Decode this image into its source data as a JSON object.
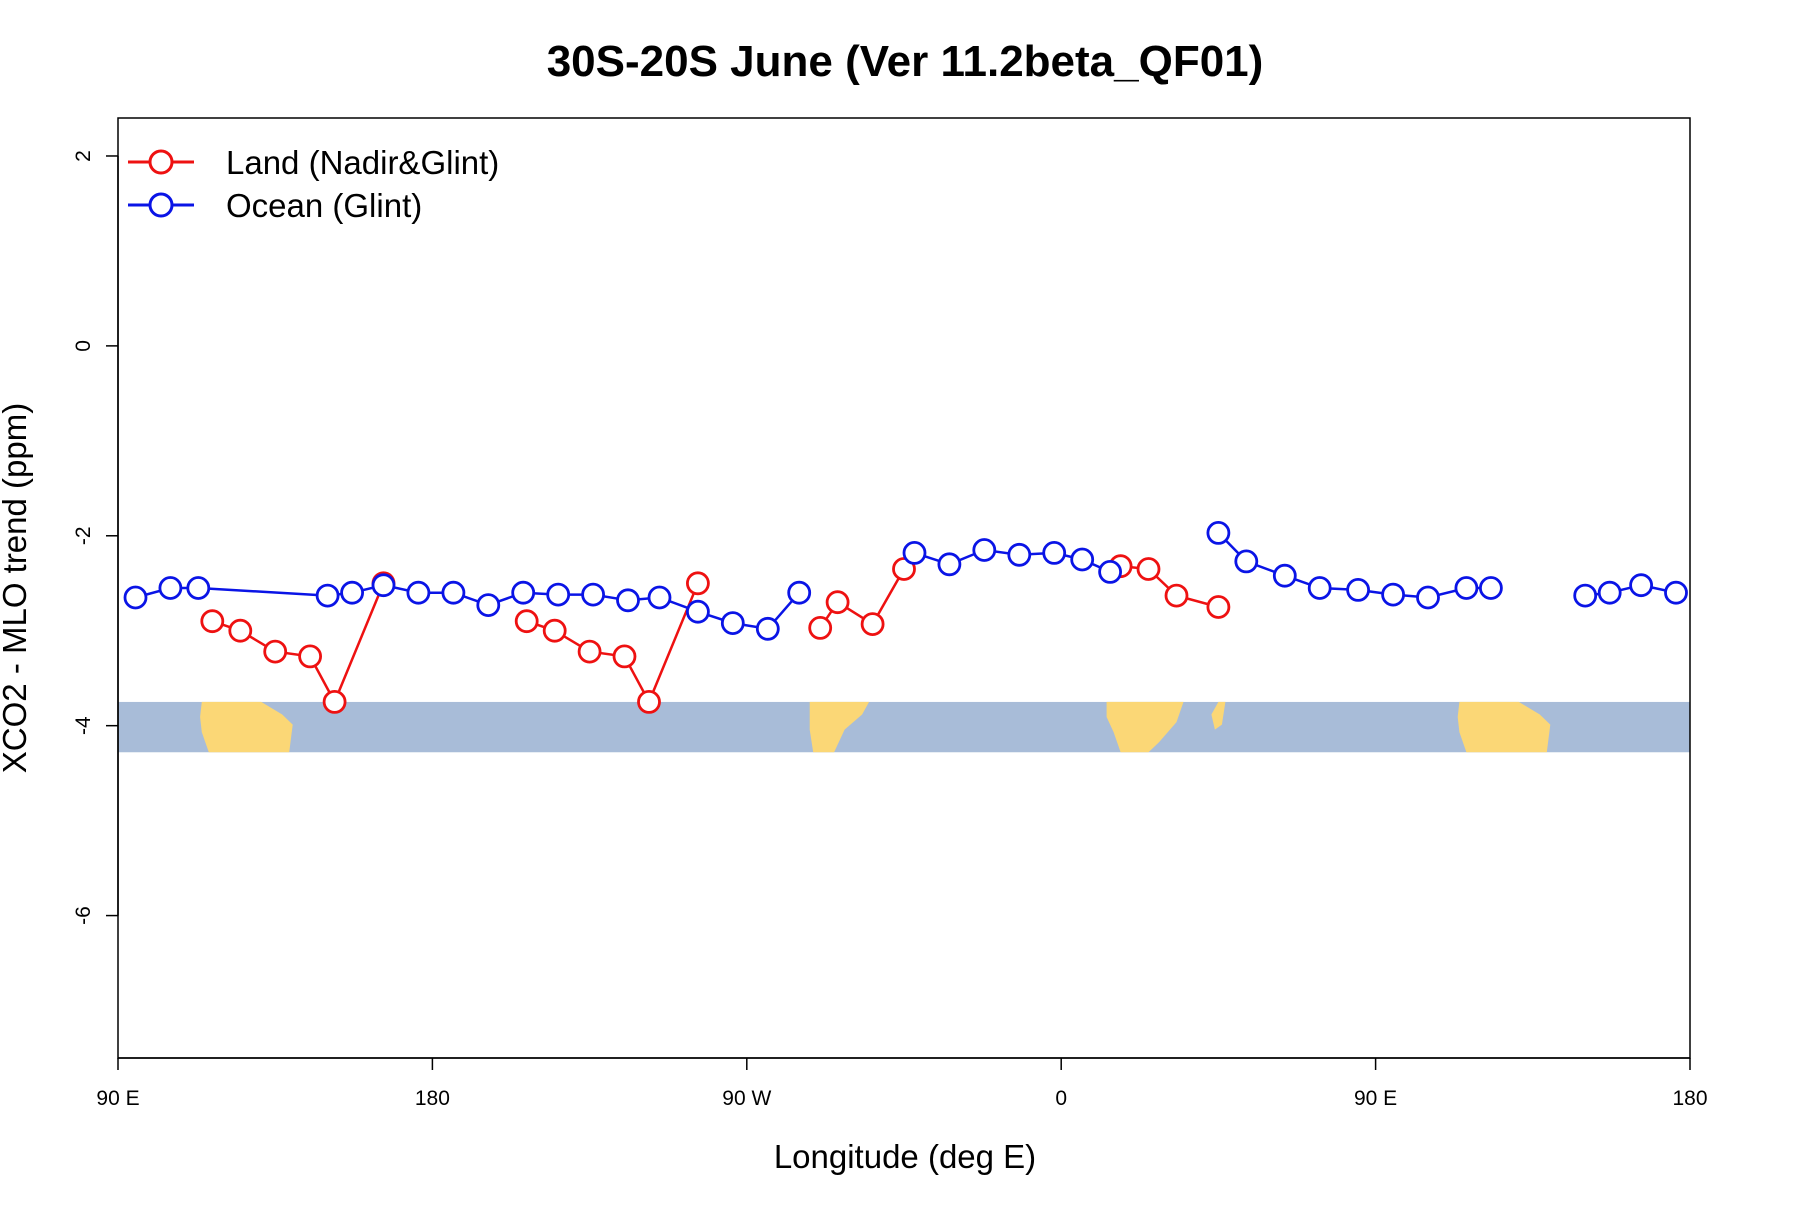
{
  "chart_data": {
    "type": "line",
    "title": "30S-20S June (Ver 11.2beta_QF01)",
    "xlabel": "Longitude (deg E)",
    "ylabel": "XCO2 - MLO trend (ppm)",
    "xlim": [
      90,
      540
    ],
    "ylim": [
      -7.5,
      2.4
    ],
    "xticks": [
      {
        "value": 90,
        "label": "90 E"
      },
      {
        "value": 180,
        "label": "180"
      },
      {
        "value": 270,
        "label": "90 W"
      },
      {
        "value": 360,
        "label": "0"
      },
      {
        "value": 450,
        "label": "90 E"
      },
      {
        "value": 540,
        "label": "180"
      }
    ],
    "yticks": [
      {
        "value": 2,
        "label": "2"
      },
      {
        "value": 0,
        "label": "0"
      },
      {
        "value": -2,
        "label": "-2"
      },
      {
        "value": -4,
        "label": "-4"
      },
      {
        "value": -6,
        "label": "-6"
      }
    ],
    "legend_position": "top-left",
    "series": [
      {
        "name": "Land (Nadir&Glint)",
        "color": "#ee1111",
        "segments": [
          [
            [
              117,
              -2.9
            ],
            [
              125,
              -3.0
            ],
            [
              135,
              -3.22
            ],
            [
              145,
              -3.27
            ],
            [
              152,
              -3.75
            ],
            [
              166,
              -2.5
            ]
          ],
          [
            [
              291,
              -2.97
            ],
            [
              296,
              -2.7
            ],
            [
              306,
              -2.93
            ],
            [
              315,
              -2.35
            ]
          ],
          [
            [
              377,
              -2.32
            ],
            [
              385,
              -2.35
            ],
            [
              393,
              -2.63
            ],
            [
              405,
              -2.75
            ]
          ],
          [
            [
              207,
              -2.9
            ],
            [
              215,
              -3.0
            ],
            [
              225,
              -3.22
            ],
            [
              235,
              -3.27
            ],
            [
              242,
              -3.75
            ],
            [
              256,
              -2.5
            ]
          ]
        ]
      },
      {
        "name": "Ocean (Glint)",
        "color": "#0a14e6",
        "segments": [
          [
            [
              95,
              -2.65
            ],
            [
              105,
              -2.55
            ],
            [
              113,
              -2.55
            ],
            [
              150,
              -2.63
            ],
            [
              157,
              -2.6
            ],
            [
              166,
              -2.52
            ],
            [
              176,
              -2.6
            ],
            [
              186,
              -2.6
            ],
            [
              196,
              -2.73
            ],
            [
              206,
              -2.6
            ],
            [
              216,
              -2.62
            ],
            [
              226,
              -2.62
            ],
            [
              236,
              -2.68
            ],
            [
              245,
              -2.65
            ],
            [
              256,
              -2.8
            ],
            [
              266,
              -2.92
            ],
            [
              276,
              -2.98
            ],
            [
              285,
              -2.6
            ]
          ],
          [
            [
              318,
              -2.18
            ],
            [
              328,
              -2.3
            ],
            [
              338,
              -2.15
            ],
            [
              348,
              -2.2
            ],
            [
              358,
              -2.18
            ],
            [
              366,
              -2.25
            ],
            [
              374,
              -2.38
            ]
          ],
          [
            [
              405,
              -1.97
            ],
            [
              413,
              -2.27
            ],
            [
              424,
              -2.42
            ],
            [
              434,
              -2.55
            ],
            [
              445,
              -2.57
            ],
            [
              455,
              -2.62
            ],
            [
              465,
              -2.65
            ],
            [
              476,
              -2.55
            ],
            [
              483,
              -2.55
            ]
          ],
          [
            [
              510,
              -2.63
            ],
            [
              517,
              -2.6
            ],
            [
              526,
              -2.52
            ],
            [
              536,
              -2.6
            ]
          ]
        ]
      }
    ],
    "map_band": {
      "y_top": -3.75,
      "y_bottom": -4.28,
      "ocean_color": "#a8bcd8",
      "land_color": "#fbd776"
    }
  }
}
